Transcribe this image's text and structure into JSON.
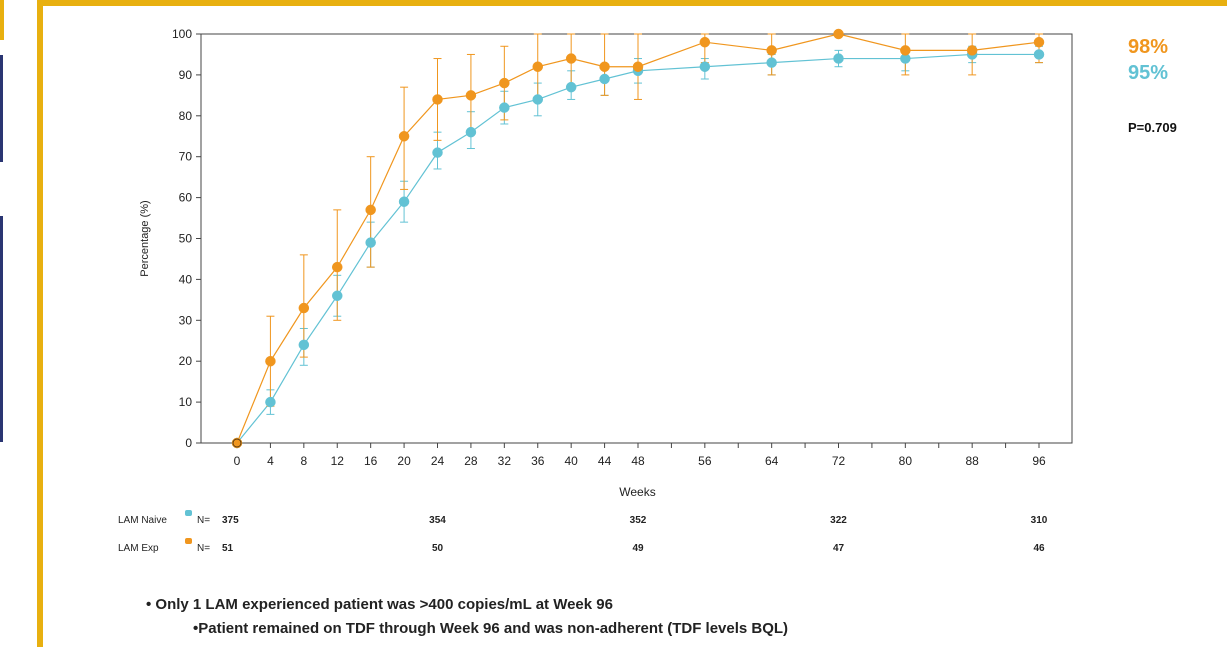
{
  "chart_data": {
    "type": "line",
    "xlabel": "Weeks",
    "ylabel": "Percentage (%)",
    "ylim": [
      0,
      100
    ],
    "y_ticks": [
      0,
      10,
      20,
      30,
      40,
      50,
      60,
      70,
      80,
      90,
      100
    ],
    "x_ticks": [
      0,
      4,
      8,
      12,
      16,
      20,
      24,
      28,
      32,
      36,
      40,
      44,
      48,
      56,
      64,
      72,
      80,
      88,
      96
    ],
    "colors": {
      "naive": "#62c2d4",
      "exp": "#f0961e"
    },
    "series": [
      {
        "key": "naive",
        "name": "LAM Naive",
        "x": [
          0,
          4,
          8,
          12,
          16,
          20,
          24,
          28,
          32,
          36,
          40,
          44,
          48,
          56,
          64,
          72,
          80,
          88,
          96
        ],
        "y": [
          0,
          10,
          24,
          36,
          49,
          59,
          71,
          76,
          82,
          84,
          87,
          89,
          91,
          92,
          93,
          94,
          94,
          95,
          95
        ],
        "err_low": [
          0,
          7,
          19,
          31,
          43,
          54,
          67,
          72,
          78,
          80,
          84,
          85,
          88,
          89,
          90,
          92,
          91,
          93,
          93
        ],
        "err_high": [
          0,
          13,
          28,
          41,
          54,
          64,
          76,
          81,
          86,
          88,
          91,
          92,
          94,
          94,
          95,
          96,
          96,
          97,
          97
        ]
      },
      {
        "key": "exp",
        "name": "LAM Exp",
        "x": [
          0,
          4,
          8,
          12,
          16,
          20,
          24,
          28,
          32,
          36,
          40,
          44,
          48,
          56,
          64,
          72,
          80,
          88,
          96
        ],
        "y": [
          0,
          20,
          33,
          43,
          57,
          75,
          84,
          85,
          88,
          92,
          94,
          92,
          92,
          98,
          96,
          100,
          96,
          96,
          98
        ],
        "err_low": [
          0,
          9,
          21,
          30,
          43,
          62,
          74,
          76,
          79,
          84,
          87,
          85,
          84,
          93,
          90,
          100,
          90,
          90,
          93
        ],
        "err_high": [
          0,
          31,
          46,
          57,
          70,
          87,
          94,
          95,
          97,
          100,
          100,
          100,
          100,
          100,
          100,
          100,
          100,
          100,
          100
        ]
      }
    ],
    "n_at_risk": {
      "label": "N=",
      "weeks": [
        0,
        24,
        48,
        72,
        96
      ],
      "rows": [
        {
          "key": "naive",
          "label": "LAM Naive",
          "values": [
            "375",
            "354",
            "352",
            "322",
            "310"
          ]
        },
        {
          "key": "exp",
          "label": "LAM Exp",
          "values": [
            "51",
            "50",
            "49",
            "47",
            "46"
          ]
        }
      ]
    },
    "annotations": {
      "exp_pct": "98%",
      "naive_pct": "95%",
      "p_value": "P=0.709"
    }
  },
  "notes": {
    "bullet1": "• Only 1 LAM experienced patient was >400 copies/mL at Week 96",
    "bullet2": "•Patient remained on TDF through Week 96 and was non-adherent (TDF levels BQL)"
  }
}
